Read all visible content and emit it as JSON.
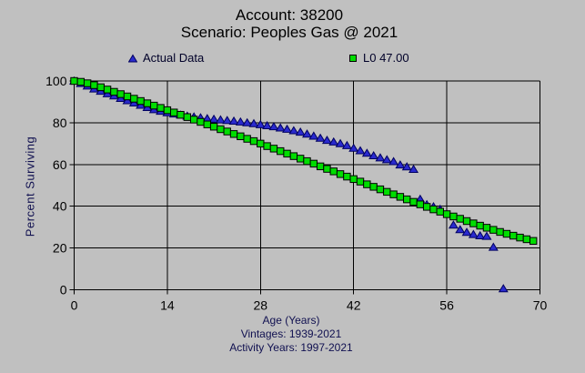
{
  "header": {
    "title": "Account: 38200",
    "subtitle": "Scenario: Peoples Gas @ 2021"
  },
  "footer": {
    "vintages": "Vintages: 1939-2021",
    "activity_years": "Activity Years: 1997-2021"
  },
  "colors": {
    "background": "#c0c0c0",
    "grid": "#000000",
    "tick_text": "#000000",
    "label_text": "#101050",
    "actual_fill": "#2a2ace",
    "actual_edge": "#000060",
    "l0_fill": "#00dd00",
    "l0_edge": "#000000"
  },
  "chart_data": {
    "type": "scatter",
    "title": "Account: 38200",
    "subtitle": "Scenario: Peoples Gas @ 2021",
    "xlabel": "Age (Years)",
    "ylabel": "Percent Surviving",
    "footnotes": [
      "Vintages: 1939-2021",
      "Activity Years: 1997-2021"
    ],
    "xlim": [
      0,
      70
    ],
    "ylim": [
      0,
      100
    ],
    "xticks": [
      0,
      14,
      28,
      42,
      56,
      70
    ],
    "yticks": [
      0,
      20,
      40,
      60,
      80,
      100
    ],
    "grid": true,
    "legend_position": "top",
    "series": [
      {
        "name": "Actual Data",
        "marker": "triangle",
        "fill": "#2a2ace",
        "edge": "#000060",
        "points": [
          [
            0,
            100
          ],
          [
            1,
            98.8
          ],
          [
            2,
            97.6
          ],
          [
            3,
            96.2
          ],
          [
            4,
            95.1
          ],
          [
            5,
            93.9
          ],
          [
            6,
            92.9
          ],
          [
            7,
            91.7
          ],
          [
            8,
            90.6
          ],
          [
            9,
            89.5
          ],
          [
            10,
            88.4
          ],
          [
            11,
            87.3
          ],
          [
            12,
            86.3
          ],
          [
            13,
            85.5
          ],
          [
            14,
            84.8
          ],
          [
            15,
            84.2
          ],
          [
            16,
            83.7
          ],
          [
            17,
            83.2
          ],
          [
            18,
            82.8
          ],
          [
            19,
            82.4
          ],
          [
            20,
            82.0
          ],
          [
            21,
            81.7
          ],
          [
            22,
            81.4
          ],
          [
            23,
            81.1
          ],
          [
            24,
            80.8
          ],
          [
            25,
            80.4
          ],
          [
            26,
            80.0
          ],
          [
            27,
            79.6
          ],
          [
            28,
            79.1
          ],
          [
            29,
            78.6
          ],
          [
            30,
            78.1
          ],
          [
            31,
            77.5
          ],
          [
            32,
            76.9
          ],
          [
            33,
            76.2
          ],
          [
            34,
            75.5
          ],
          [
            35,
            74.6
          ],
          [
            36,
            73.6
          ],
          [
            37,
            72.6
          ],
          [
            38,
            71.6
          ],
          [
            39,
            70.8
          ],
          [
            40,
            70.0
          ],
          [
            41,
            69.1
          ],
          [
            42,
            67.8
          ],
          [
            43,
            66.6
          ],
          [
            44,
            65.4
          ],
          [
            45,
            64.2
          ],
          [
            46,
            63.2
          ],
          [
            47,
            62.3
          ],
          [
            48,
            61.4
          ],
          [
            49,
            59.8
          ],
          [
            50,
            58.9
          ],
          [
            51,
            57.7
          ],
          [
            52,
            43.4
          ],
          [
            53,
            40.8
          ],
          [
            54,
            39.8
          ],
          [
            55,
            38.6
          ],
          [
            57,
            31.0
          ],
          [
            58,
            28.8
          ],
          [
            59,
            27.5
          ],
          [
            60,
            26.5
          ],
          [
            61,
            25.9
          ],
          [
            62,
            25.6
          ],
          [
            63,
            20.4
          ],
          [
            64.5,
            0.5
          ]
        ]
      },
      {
        "name": "L0 47.00",
        "marker": "square",
        "fill": "#00dd00",
        "edge": "#000000",
        "points": [
          [
            0,
            100
          ],
          [
            1,
            99.6
          ],
          [
            2,
            98.9
          ],
          [
            3,
            98.0
          ],
          [
            4,
            97.0
          ],
          [
            5,
            95.9
          ],
          [
            6,
            94.8
          ],
          [
            7,
            93.7
          ],
          [
            8,
            92.6
          ],
          [
            9,
            91.5
          ],
          [
            10,
            90.4
          ],
          [
            11,
            89.3
          ],
          [
            12,
            88.2
          ],
          [
            13,
            87.1
          ],
          [
            14,
            86.0
          ],
          [
            15,
            84.9
          ],
          [
            16,
            83.8
          ],
          [
            17,
            82.7
          ],
          [
            18,
            81.5
          ],
          [
            19,
            80.4
          ],
          [
            20,
            79.2
          ],
          [
            21,
            78.1
          ],
          [
            22,
            76.9
          ],
          [
            23,
            75.8
          ],
          [
            24,
            74.6
          ],
          [
            25,
            73.5
          ],
          [
            26,
            72.3
          ],
          [
            27,
            71.2
          ],
          [
            28,
            70.0
          ],
          [
            29,
            68.8
          ],
          [
            30,
            67.6
          ],
          [
            31,
            66.4
          ],
          [
            32,
            65.2
          ],
          [
            33,
            64.0
          ],
          [
            34,
            62.8
          ],
          [
            35,
            61.6
          ],
          [
            36,
            60.4
          ],
          [
            37,
            59.1
          ],
          [
            38,
            57.9
          ],
          [
            39,
            56.7
          ],
          [
            40,
            55.4
          ],
          [
            41,
            54.2
          ],
          [
            42,
            53.0
          ],
          [
            43,
            51.8
          ],
          [
            44,
            50.5
          ],
          [
            45,
            49.3
          ],
          [
            46,
            48.1
          ],
          [
            47,
            46.9
          ],
          [
            48,
            45.7
          ],
          [
            49,
            44.5
          ],
          [
            50,
            43.3
          ],
          [
            51,
            42.1
          ],
          [
            52,
            40.9
          ],
          [
            53,
            39.7
          ],
          [
            54,
            38.5
          ],
          [
            55,
            37.4
          ],
          [
            56,
            36.2
          ],
          [
            57,
            35.1
          ],
          [
            58,
            34.0
          ],
          [
            59,
            32.9
          ],
          [
            60,
            31.8
          ],
          [
            61,
            30.7
          ],
          [
            62,
            29.7
          ],
          [
            63,
            28.7
          ],
          [
            64,
            27.7
          ],
          [
            65,
            26.8
          ],
          [
            66,
            25.9
          ],
          [
            67,
            25.0
          ],
          [
            68,
            24.2
          ],
          [
            69,
            23.4
          ]
        ]
      }
    ]
  }
}
